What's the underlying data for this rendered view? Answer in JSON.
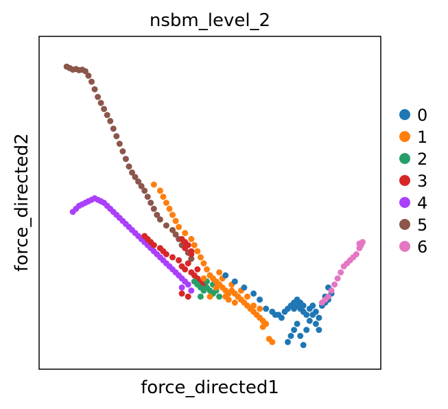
{
  "chart_data": {
    "type": "scatter",
    "title": "nsbm_level_2",
    "xlabel": "force_directed1",
    "ylabel": "force_directed2",
    "xlim": [
      0,
      100
    ],
    "ylim": [
      0,
      100
    ],
    "grid": false,
    "ticks": false,
    "legend_position": "right",
    "legend": [
      {
        "label": "0",
        "color": "#1f77b4"
      },
      {
        "label": "1",
        "color": "#ff7f0e"
      },
      {
        "label": "2",
        "color": "#279e68"
      },
      {
        "label": "3",
        "color": "#d62728"
      },
      {
        "label": "4",
        "color": "#aa40fc"
      },
      {
        "label": "5",
        "color": "#8c564b"
      },
      {
        "label": "6",
        "color": "#e377c2"
      }
    ],
    "series": [
      {
        "color": "#8c564b",
        "points": [
          [
            4,
            95
          ],
          [
            5,
            94.5
          ],
          [
            6,
            94
          ],
          [
            7,
            94.2
          ],
          [
            8,
            93.8
          ],
          [
            9,
            94
          ],
          [
            10,
            93.5
          ],
          [
            11,
            92
          ],
          [
            12,
            90
          ],
          [
            13,
            87.5
          ],
          [
            14,
            85
          ],
          [
            15,
            83
          ],
          [
            16,
            81
          ],
          [
            17,
            79
          ],
          [
            18,
            77
          ],
          [
            19,
            74.5
          ],
          [
            20,
            72
          ],
          [
            21,
            69.5
          ],
          [
            22,
            67
          ],
          [
            23,
            64.5
          ],
          [
            24,
            62
          ],
          [
            25,
            60
          ],
          [
            26,
            58.5
          ],
          [
            27,
            57
          ],
          [
            28,
            55.5
          ],
          [
            29,
            54
          ],
          [
            30,
            52
          ],
          [
            31,
            50
          ],
          [
            32,
            48
          ],
          [
            33,
            46
          ],
          [
            34,
            44.5
          ],
          [
            36,
            42.5
          ],
          [
            38,
            41
          ],
          [
            40,
            38
          ],
          [
            42,
            35.5
          ],
          [
            43,
            33.5
          ],
          [
            44,
            31.5
          ],
          [
            41,
            36
          ],
          [
            39,
            39.5
          ]
        ]
      },
      {
        "color": "#aa40fc",
        "points": [
          [
            6,
            47
          ],
          [
            7,
            48
          ],
          [
            8,
            49
          ],
          [
            9,
            49.5
          ],
          [
            10,
            50
          ],
          [
            11,
            50.5
          ],
          [
            12,
            51
          ],
          [
            13,
            51.5
          ],
          [
            14,
            51
          ],
          [
            15,
            50.5
          ],
          [
            16,
            50
          ],
          [
            17,
            49
          ],
          [
            18,
            48
          ],
          [
            19,
            47
          ],
          [
            20,
            46
          ],
          [
            21,
            45
          ],
          [
            22,
            44
          ],
          [
            23,
            43
          ],
          [
            24,
            42
          ],
          [
            25,
            41
          ],
          [
            26,
            40
          ],
          [
            27,
            39
          ],
          [
            28,
            38
          ],
          [
            29,
            37
          ],
          [
            30,
            36
          ],
          [
            31,
            35
          ],
          [
            32,
            34
          ],
          [
            33,
            33
          ],
          [
            34,
            32
          ],
          [
            35,
            31
          ],
          [
            36,
            30
          ],
          [
            37,
            29
          ],
          [
            38,
            28
          ],
          [
            39,
            27
          ],
          [
            40,
            26
          ],
          [
            41,
            25
          ],
          [
            42,
            24
          ],
          [
            43,
            23
          ],
          [
            41,
            22
          ],
          [
            44,
            21
          ]
        ]
      },
      {
        "color": "#d62728",
        "points": [
          [
            29,
            39
          ],
          [
            30,
            38
          ],
          [
            31,
            37
          ],
          [
            32,
            36
          ],
          [
            34,
            35
          ],
          [
            35,
            34
          ],
          [
            36,
            33
          ],
          [
            38,
            32
          ],
          [
            40,
            31
          ],
          [
            41,
            29
          ],
          [
            42,
            28
          ],
          [
            43,
            30
          ],
          [
            44,
            27
          ],
          [
            45,
            26
          ],
          [
            46,
            25
          ],
          [
            47,
            24
          ],
          [
            48,
            23
          ],
          [
            46,
            28
          ],
          [
            44,
            33
          ],
          [
            42,
            35
          ],
          [
            41,
            38
          ],
          [
            42,
            37
          ],
          [
            43,
            36
          ],
          [
            44,
            34
          ],
          [
            41,
            20
          ],
          [
            43,
            19
          ]
        ]
      },
      {
        "color": "#279e68",
        "points": [
          [
            45,
            24
          ],
          [
            46,
            23
          ],
          [
            47,
            22
          ],
          [
            48,
            21
          ],
          [
            49,
            22
          ],
          [
            50,
            21
          ],
          [
            51,
            20
          ],
          [
            52,
            21
          ],
          [
            53,
            19
          ],
          [
            47,
            19
          ],
          [
            49,
            24
          ],
          [
            51,
            23
          ],
          [
            53,
            23
          ],
          [
            50,
            26
          ]
        ]
      },
      {
        "color": "#ff7f0e",
        "points": [
          [
            32,
            56
          ],
          [
            34,
            54
          ],
          [
            35,
            52
          ],
          [
            36,
            50
          ],
          [
            37,
            48
          ],
          [
            38,
            46
          ],
          [
            39,
            44
          ],
          [
            40,
            42
          ],
          [
            42,
            40
          ],
          [
            44,
            38
          ],
          [
            45,
            36
          ],
          [
            46,
            34
          ],
          [
            47,
            32
          ],
          [
            48,
            30
          ],
          [
            49,
            28
          ],
          [
            50,
            26
          ],
          [
            51,
            25
          ],
          [
            52,
            24
          ],
          [
            53,
            23
          ],
          [
            54,
            22
          ],
          [
            55,
            21
          ],
          [
            56,
            20
          ],
          [
            57,
            21
          ],
          [
            58,
            20
          ],
          [
            59,
            19
          ],
          [
            60,
            18
          ],
          [
            61,
            17
          ],
          [
            62,
            16
          ],
          [
            63,
            15
          ],
          [
            64,
            14
          ],
          [
            65,
            13
          ],
          [
            66,
            12
          ],
          [
            67,
            11
          ],
          [
            68,
            10
          ],
          [
            52,
            22
          ],
          [
            54,
            25
          ],
          [
            55,
            19
          ],
          [
            57,
            23
          ],
          [
            60,
            21
          ],
          [
            58,
            17
          ],
          [
            62,
            19
          ],
          [
            64,
            16
          ],
          [
            66,
            15
          ],
          [
            56,
            18
          ],
          [
            50,
            19
          ],
          [
            48,
            25
          ],
          [
            53,
            27
          ],
          [
            67,
            9
          ],
          [
            69,
            5
          ],
          [
            70,
            4
          ]
        ]
      },
      {
        "color": "#1f77b4",
        "points": [
          [
            55,
            26
          ],
          [
            58,
            24
          ],
          [
            61,
            22
          ],
          [
            64,
            20
          ],
          [
            66,
            18
          ],
          [
            68,
            15
          ],
          [
            70,
            14
          ],
          [
            71,
            13
          ],
          [
            72,
            13
          ],
          [
            73,
            12
          ],
          [
            74,
            14
          ],
          [
            75,
            15
          ],
          [
            76,
            16
          ],
          [
            77,
            15
          ],
          [
            78,
            16
          ],
          [
            79,
            15
          ],
          [
            80,
            14
          ],
          [
            81,
            13
          ],
          [
            82,
            15
          ],
          [
            83,
            16
          ],
          [
            84,
            14
          ],
          [
            85,
            12
          ],
          [
            84,
            10
          ],
          [
            85,
            8
          ],
          [
            78,
            10
          ],
          [
            77,
            8
          ],
          [
            76,
            6
          ],
          [
            75,
            4
          ],
          [
            79,
            6
          ],
          [
            80,
            3
          ],
          [
            81,
            8
          ],
          [
            82,
            11
          ],
          [
            83,
            13
          ],
          [
            80,
            16
          ],
          [
            79,
            17
          ],
          [
            86,
            16
          ],
          [
            87,
            17
          ],
          [
            88,
            18
          ],
          [
            89,
            20
          ],
          [
            88,
            22
          ],
          [
            87,
            19
          ],
          [
            78,
            18
          ],
          [
            77,
            17
          ]
        ]
      },
      {
        "color": "#e377c2",
        "points": [
          [
            86,
            17
          ],
          [
            87,
            18
          ],
          [
            88,
            19
          ],
          [
            89,
            21
          ],
          [
            90,
            23
          ],
          [
            91,
            25
          ],
          [
            92,
            27
          ],
          [
            93,
            29
          ],
          [
            94,
            30
          ],
          [
            95,
            31
          ],
          [
            96,
            32
          ],
          [
            97,
            33
          ],
          [
            98,
            35
          ],
          [
            98.5,
            36
          ],
          [
            99,
            37
          ],
          [
            98,
            36.5
          ]
        ]
      }
    ]
  }
}
